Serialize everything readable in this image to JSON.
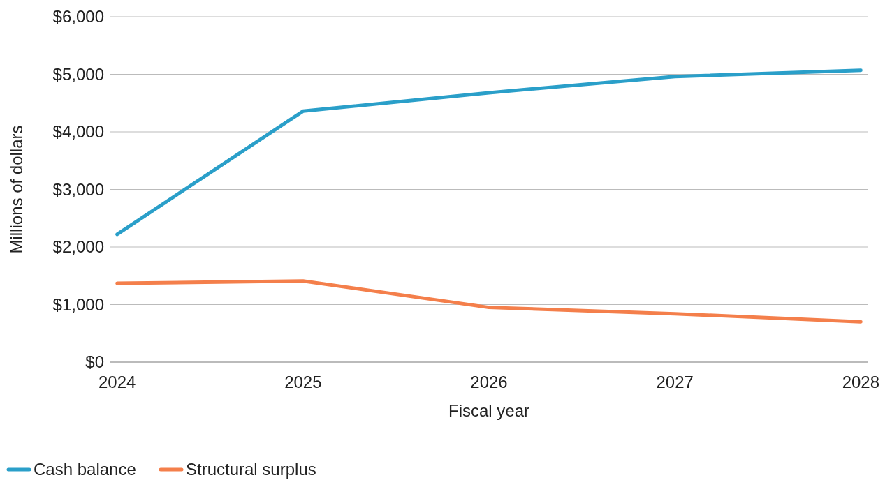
{
  "chart_data": {
    "type": "line",
    "xlabel": "Fiscal year",
    "ylabel": "Millions of dollars",
    "categories": [
      "2024",
      "2025",
      "2026",
      "2027",
      "2028"
    ],
    "series": [
      {
        "name": "Cash balance",
        "color": "#2a9fc9",
        "values": [
          2220,
          4360,
          4680,
          4960,
          5070
        ]
      },
      {
        "name": "Structural surplus",
        "color": "#f47f4b",
        "values": [
          1370,
          1410,
          950,
          840,
          700
        ]
      }
    ],
    "ylim": [
      0,
      6000
    ],
    "yticks": [
      {
        "value": 0,
        "label": "$0"
      },
      {
        "value": 1000,
        "label": "$1,000"
      },
      {
        "value": 2000,
        "label": "$2,000"
      },
      {
        "value": 3000,
        "label": "$3,000"
      },
      {
        "value": 4000,
        "label": "$4,000"
      },
      {
        "value": 5000,
        "label": "$5,000"
      },
      {
        "value": 6000,
        "label": "$6,000"
      }
    ],
    "grid": "y",
    "legend": "bottom left",
    "marker": "none",
    "line_style": "solid"
  }
}
